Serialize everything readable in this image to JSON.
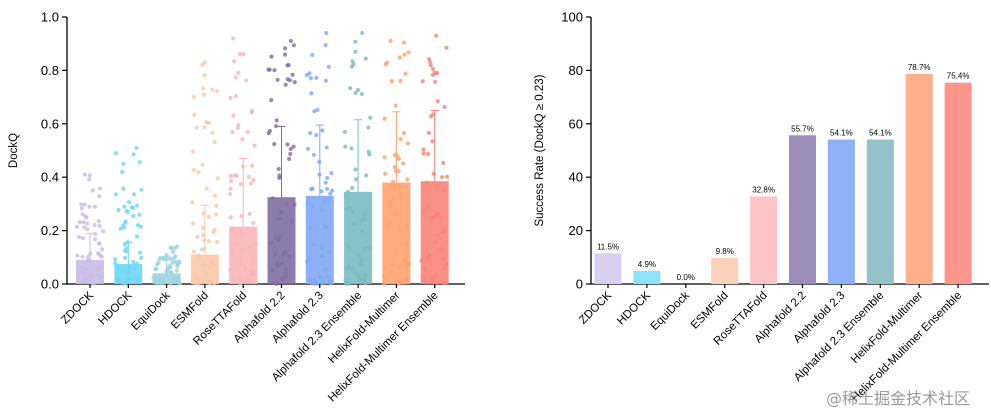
{
  "chart_data": [
    {
      "type": "bar",
      "variant": "bar-with-scatter-points",
      "ylabel": "DockQ",
      "ylim": [
        0,
        1.0
      ],
      "yticks": [
        "0.0",
        "0.2",
        "0.4",
        "0.6",
        "0.8",
        "1.0"
      ],
      "categories": [
        "ZDOCK",
        "HDOCK",
        "EquiDock",
        "ESMFold",
        "RoseTTAFold",
        "Alphafold 2.2",
        "Alphafold 2.3",
        "Alphafold 2.3 Ensemble",
        "HelixFold-Multimer",
        "HelixFold-Multimer Ensemble"
      ],
      "values": [
        0.09,
        0.075,
        0.04,
        0.11,
        0.215,
        0.325,
        0.33,
        0.345,
        0.38,
        0.385
      ],
      "error_upper": [
        0.19,
        0.155,
        0.09,
        0.295,
        0.47,
        0.59,
        0.595,
        0.615,
        0.645,
        0.65
      ],
      "point_ranges": [
        [
          0.0,
          0.41
        ],
        [
          0.0,
          0.51
        ],
        [
          0.0,
          0.14
        ],
        [
          0.0,
          0.83
        ],
        [
          0.0,
          0.92
        ],
        [
          0.0,
          0.91
        ],
        [
          0.0,
          0.94
        ],
        [
          0.0,
          0.94
        ],
        [
          0.0,
          0.91
        ],
        [
          0.0,
          0.93
        ]
      ],
      "colors": [
        "#C8BCE6",
        "#6FD6F5",
        "#9ED4DD",
        "#FBC8A8",
        "#F9B5B8",
        "#7E6EA2",
        "#7FA8F5",
        "#79BCC2",
        "#FFA26E",
        "#F98476"
      ]
    },
    {
      "type": "bar",
      "ylabel": "Success Rate (DockQ ≥ 0.23)",
      "ylim": [
        0,
        100
      ],
      "yticks": [
        "0",
        "20",
        "40",
        "60",
        "80",
        "100"
      ],
      "categories": [
        "ZDOCK",
        "HDOCK",
        "EquiDock",
        "ESMFold",
        "RoseTTAFold",
        "Alphafold 2.2",
        "Alphafold 2.3",
        "Alphafold 2.3 Ensemble",
        "HelixFold-Multimer",
        "HelixFold-Multimer Ensemble"
      ],
      "values": [
        11.5,
        4.9,
        0.0,
        9.8,
        32.8,
        55.7,
        54.1,
        54.1,
        78.7,
        75.4
      ],
      "data_labels": [
        "11.5%",
        "4.9%",
        "0.0%",
        "9.8%",
        "32.8%",
        "55.7%",
        "54.1%",
        "54.1%",
        "78.7%",
        "75.4%"
      ],
      "colors": [
        "#D9CFEF",
        "#8EE3F8",
        "#BFE4E9",
        "#FDD2BA",
        "#FCC4C7",
        "#9C8CB9",
        "#8FB1F8",
        "#92C2C6",
        "#FFAF8A",
        "#FF968C"
      ]
    }
  ],
  "watermark": "@稀土掘金技术社区"
}
